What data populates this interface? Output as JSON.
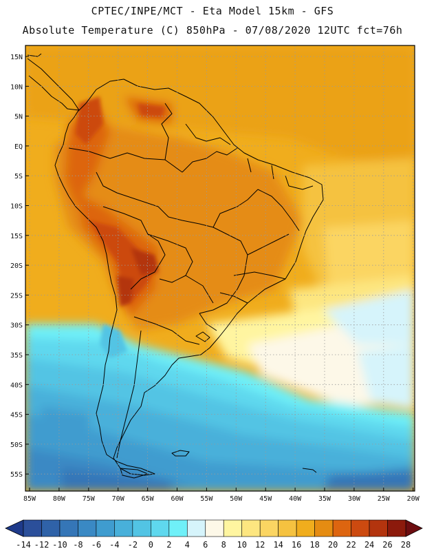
{
  "header": {
    "line1": "CPTEC/INPE/MCT -  Eta Model 15km - GFS",
    "line2": "Absolute Temperature (C) 850hPa - 07/08/2020 12UTC fct=76h"
  },
  "map": {
    "lat_labels": [
      "15N",
      "10N",
      "5N",
      "EQ",
      "5S",
      "10S",
      "15S",
      "20S",
      "25S",
      "30S",
      "35S",
      "40S",
      "45S",
      "50S",
      "55S"
    ],
    "lon_labels": [
      "85W",
      "80W",
      "75W",
      "70W",
      "65W",
      "60W",
      "55W",
      "50W",
      "45W",
      "40W",
      "35W",
      "30W",
      "25W",
      "20W"
    ]
  },
  "colorbar": {
    "labels": [
      "-14",
      "-12",
      "-10",
      "-8",
      "-6",
      "-4",
      "-2",
      "0",
      "2",
      "4",
      "6",
      "8",
      "10",
      "12",
      "14",
      "16",
      "18",
      "20",
      "22",
      "24",
      "26",
      "28"
    ],
    "colors": [
      "#2b4f9a",
      "#2f62a8",
      "#3576b7",
      "#3a89c4",
      "#3f9ccf",
      "#48b0da",
      "#52c4e4",
      "#5fd8ee",
      "#6ff0f8",
      "#d6f4fb",
      "#fdf8e8",
      "#fff5a0",
      "#fde680",
      "#fbd562",
      "#f5c240",
      "#f0ad1d",
      "#e58c12",
      "#dd6510",
      "#cc4a10",
      "#b3340e",
      "#8c1a0c"
    ],
    "under_color": "#1e3a8a",
    "over_color": "#6d0d10"
  }
}
